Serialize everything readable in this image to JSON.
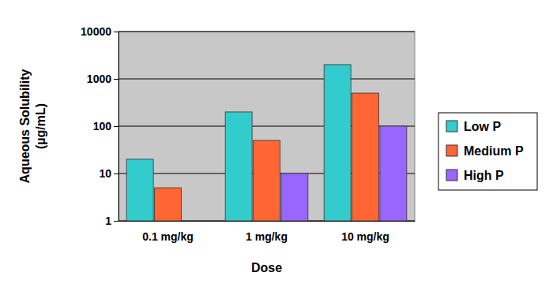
{
  "chart_data": {
    "type": "bar",
    "x_label": "Dose",
    "y_label": "Aqueous Solubility (µg/mL)",
    "categories": [
      "0.1 mg/kg",
      "1 mg/kg",
      "10 mg/kg"
    ],
    "series": [
      {
        "name": "Low P",
        "color": "#33cccc",
        "values": [
          20,
          200,
          2000
        ]
      },
      {
        "name": "Medium P",
        "color": "#ff6633",
        "values": [
          5,
          50,
          500
        ]
      },
      {
        "name": "High P",
        "color": "#9966ff",
        "values": [
          1,
          10,
          100
        ]
      }
    ],
    "log": "y",
    "ylim": [
      1,
      10000
    ],
    "yticks": [
      1,
      10,
      100,
      1000,
      10000
    ],
    "grid": true,
    "legend": "right"
  }
}
